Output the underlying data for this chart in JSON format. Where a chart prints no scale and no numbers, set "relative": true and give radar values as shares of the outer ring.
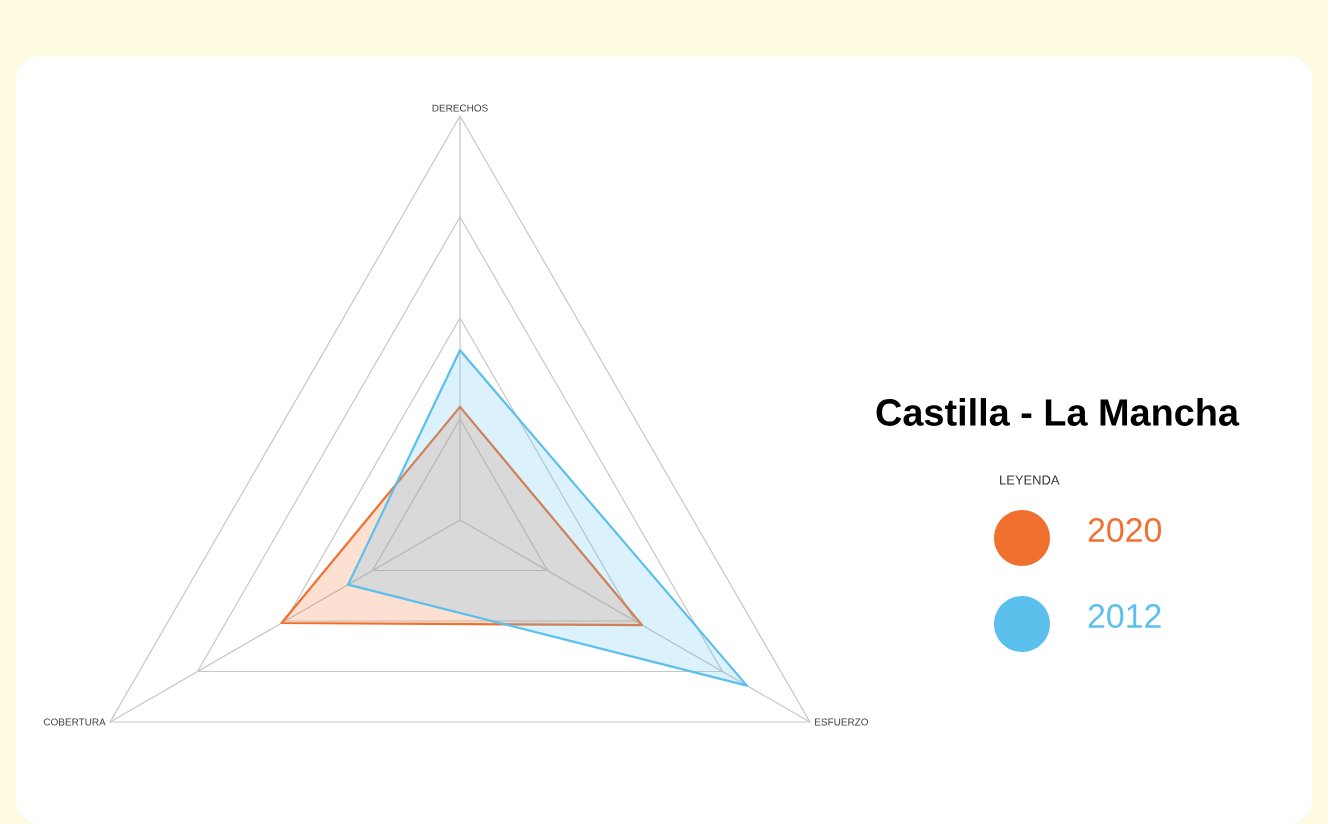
{
  "chart_data": {
    "type": "radar",
    "title": "Castilla - La Mancha",
    "legend_title": "LEYENDA",
    "relative": true,
    "grid": true,
    "legend": "right",
    "marker": "none",
    "categories": [
      "DERECHOS",
      "ESFUERZO",
      "COBERTURA"
    ],
    "series": [
      {
        "name": "2020",
        "color": "#f07030",
        "values": [
          0.28,
          0.52,
          0.51
        ]
      },
      {
        "name": "2012",
        "color": "#5bc0eb",
        "values": [
          0.42,
          0.82,
          0.32
        ]
      }
    ]
  }
}
